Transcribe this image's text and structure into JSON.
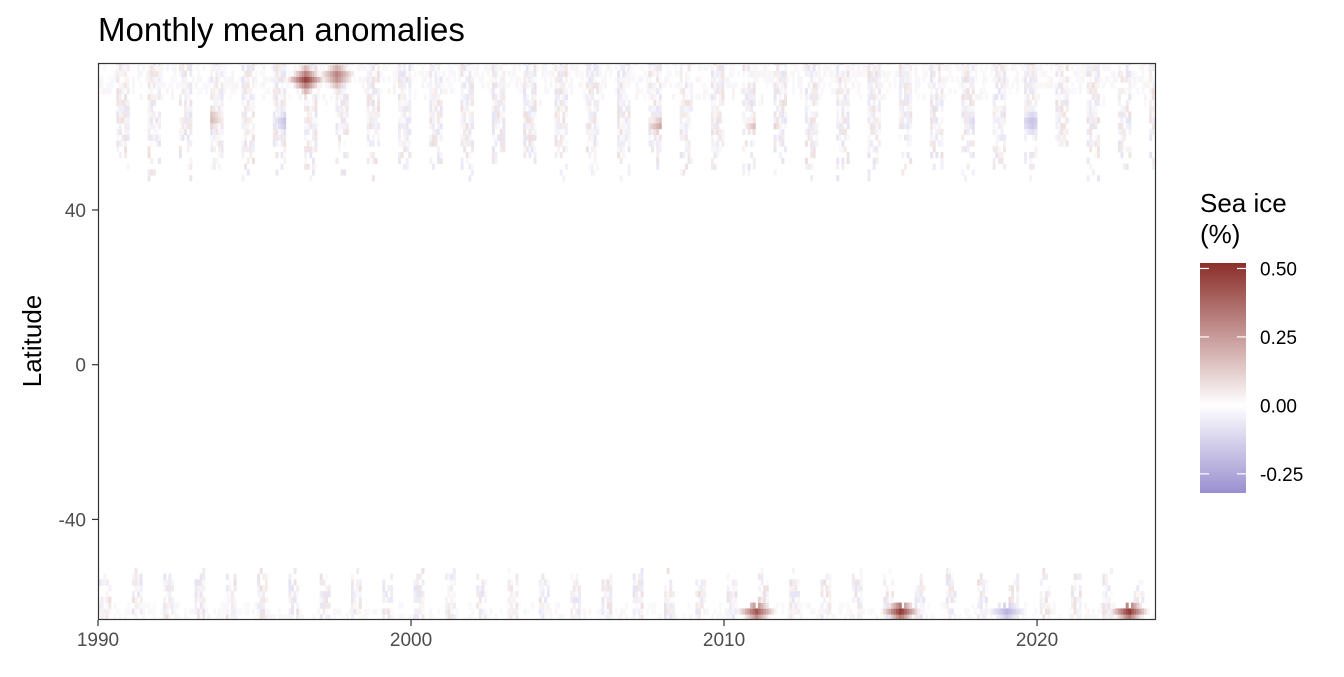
{
  "chart_data": {
    "type": "heatmap",
    "title": "Monthly mean anomalies",
    "xlabel": "",
    "ylabel": "Latitude",
    "xlim": [
      1990,
      2023.8
    ],
    "ylim": [
      -66,
      78
    ],
    "x_ticks": [
      1990,
      2000,
      2010,
      2020
    ],
    "x_tick_labels": [
      "1990",
      "2000",
      "2010",
      "2020"
    ],
    "y_ticks": [
      40,
      0,
      -40
    ],
    "y_tick_labels": [
      "40",
      "0",
      "-40"
    ],
    "grid": false,
    "legend": {
      "title_lines": [
        "Sea ice",
        "(%)"
      ],
      "position": "right",
      "range": [
        -0.32,
        0.52
      ],
      "ticks": [
        0.5,
        0.25,
        0.0,
        -0.25
      ],
      "tick_labels": [
        "0.50",
        "0.25",
        "0.00",
        "-0.25"
      ],
      "low_color": "#9a8fcf",
      "mid_color": "#ffffff",
      "high_color": "#8b2e2a"
    },
    "bands": [
      {
        "name": "arctic",
        "lat_range": [
          46,
          78
        ]
      },
      {
        "name": "antarctic",
        "lat_range": [
          -66,
          -53
        ]
      }
    ],
    "highlights": [
      {
        "year": 1996.6,
        "lat": 73,
        "value": 0.48
      },
      {
        "year": 1997.6,
        "lat": 74,
        "value": 0.35
      },
      {
        "year": 1993.5,
        "lat": 63,
        "value": 0.22
      },
      {
        "year": 1996.0,
        "lat": 62,
        "value": -0.22
      },
      {
        "year": 2002.3,
        "lat": 62,
        "value": -0.18
      },
      {
        "year": 2008.0,
        "lat": 61,
        "value": 0.25
      },
      {
        "year": 2011.2,
        "lat": 61,
        "value": 0.28
      },
      {
        "year": 2019.8,
        "lat": 62,
        "value": -0.2
      },
      {
        "year": 2018.1,
        "lat": 62,
        "value": -0.18
      },
      {
        "year": 2015.6,
        "lat": -64.5,
        "value": 0.5
      },
      {
        "year": 2022.9,
        "lat": -64.5,
        "value": 0.5
      },
      {
        "year": 2011.0,
        "lat": -64.5,
        "value": 0.42
      },
      {
        "year": 2019.0,
        "lat": -64.5,
        "value": -0.22
      }
    ]
  }
}
